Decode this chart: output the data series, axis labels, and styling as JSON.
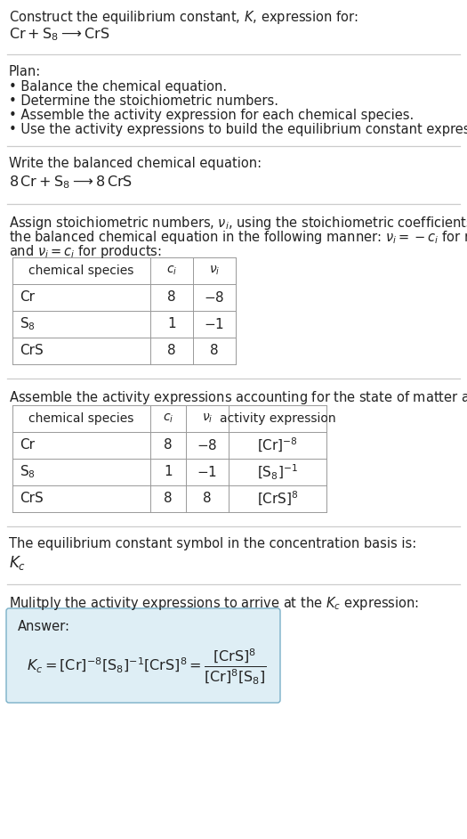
{
  "title_line1": "Construct the equilibrium constant, $K$, expression for:",
  "title_line2": "$\\mathrm{Cr} + \\mathrm{S_8} \\longrightarrow \\mathrm{CrS}$",
  "plan_header": "Plan:",
  "plan_items": [
    "• Balance the chemical equation.",
    "• Determine the stoichiometric numbers.",
    "• Assemble the activity expression for each chemical species.",
    "• Use the activity expressions to build the equilibrium constant expression."
  ],
  "balanced_header": "Write the balanced chemical equation:",
  "balanced_eq": "$8\\,\\mathrm{Cr} + \\mathrm{S_8} \\longrightarrow 8\\,\\mathrm{CrS}$",
  "stoich_header_1": "Assign stoichiometric numbers, $\\nu_i$, using the stoichiometric coefficients, $c_i$, from",
  "stoich_header_2": "the balanced chemical equation in the following manner: $\\nu_i = -c_i$ for reactants",
  "stoich_header_3": "and $\\nu_i = c_i$ for products:",
  "table1_headers": [
    "chemical species",
    "$c_i$",
    "$\\nu_i$"
  ],
  "table1_rows": [
    [
      "Cr",
      "8",
      "$-8$"
    ],
    [
      "$\\mathrm{S_8}$",
      "1",
      "$-1$"
    ],
    [
      "CrS",
      "8",
      "8"
    ]
  ],
  "activity_header": "Assemble the activity expressions accounting for the state of matter and $\\nu_i$:",
  "table2_headers": [
    "chemical species",
    "$c_i$",
    "$\\nu_i$",
    "activity expression"
  ],
  "table2_rows": [
    [
      "Cr",
      "8",
      "$-8$",
      "$[\\mathrm{Cr}]^{-8}$"
    ],
    [
      "$\\mathrm{S_8}$",
      "1",
      "$-1$",
      "$[\\mathrm{S_8}]^{-1}$"
    ],
    [
      "CrS",
      "8",
      "8",
      "$[\\mathrm{CrS}]^{8}$"
    ]
  ],
  "kc_header": "The equilibrium constant symbol in the concentration basis is:",
  "kc_symbol": "$K_c$",
  "multiply_header": "Mulitply the activity expressions to arrive at the $K_c$ expression:",
  "answer_label": "Answer:",
  "bg_color": "#ffffff",
  "table_border_color": "#999999",
  "answer_box_color": "#deeef5",
  "answer_box_border": "#7ab0c8",
  "text_color": "#222222",
  "sep_color": "#cccccc"
}
